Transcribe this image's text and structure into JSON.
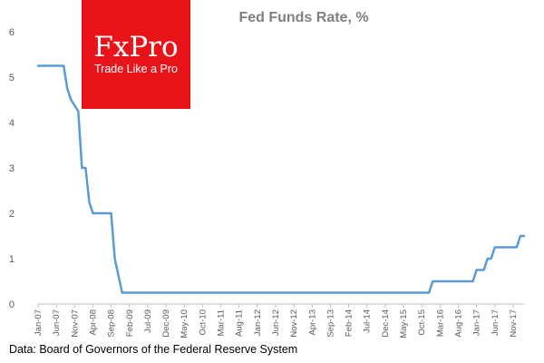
{
  "chart_data": {
    "type": "line",
    "title": "Fed Funds  Rate, %",
    "xlabel": "",
    "ylabel": "",
    "ylim": [
      0,
      6
    ],
    "y_ticks": [
      0,
      1,
      2,
      3,
      4,
      5,
      6
    ],
    "x_tick_labels": [
      "Jan-07",
      "Jun-07",
      "Nov-07",
      "Apr-08",
      "Sep-08",
      "Feb-09",
      "Jul-09",
      "Dec-09",
      "May-10",
      "Oct-10",
      "Mar-11",
      "Aug-11",
      "Jan-12",
      "Jun-12",
      "Nov-12",
      "Apr-13",
      "Sep-13",
      "Feb-14",
      "Jul-14",
      "Dec-14",
      "May-15",
      "Oct-15",
      "Mar-16",
      "Aug-16",
      "Jan-17",
      "Jun-17",
      "Nov-17"
    ],
    "grid": false,
    "legend": "none",
    "series": [
      {
        "name": "Fed Funds Rate",
        "color": "#5b9bd5",
        "points": [
          [
            "Jan-07",
            5.25
          ],
          [
            "Aug-07",
            5.25
          ],
          [
            "Sep-07",
            4.75
          ],
          [
            "Oct-07",
            4.5
          ],
          [
            "Dec-07",
            4.25
          ],
          [
            "Jan-08",
            3.0
          ],
          [
            "Feb-08",
            3.0
          ],
          [
            "Mar-08",
            2.25
          ],
          [
            "Apr-08",
            2.0
          ],
          [
            "Sep-08",
            2.0
          ],
          [
            "Oct-08",
            1.0
          ],
          [
            "Dec-08",
            0.25
          ],
          [
            "Dec-15",
            0.25
          ],
          [
            "Jan-16",
            0.5
          ],
          [
            "Dec-16",
            0.5
          ],
          [
            "Jan-17",
            0.75
          ],
          [
            "Mar-17",
            0.75
          ],
          [
            "Apr-17",
            1.0
          ],
          [
            "May-17",
            1.0
          ],
          [
            "Jun-17",
            1.25
          ],
          [
            "Dec-17",
            1.25
          ],
          [
            "Jan-18",
            1.5
          ],
          [
            "Feb-18",
            1.5
          ]
        ]
      }
    ],
    "source": "Data: Board of Governors of the Federal Reserve System"
  },
  "logo": {
    "name": "FxPro",
    "tagline": "Trade Like a Pro",
    "color": "#e8141a"
  }
}
